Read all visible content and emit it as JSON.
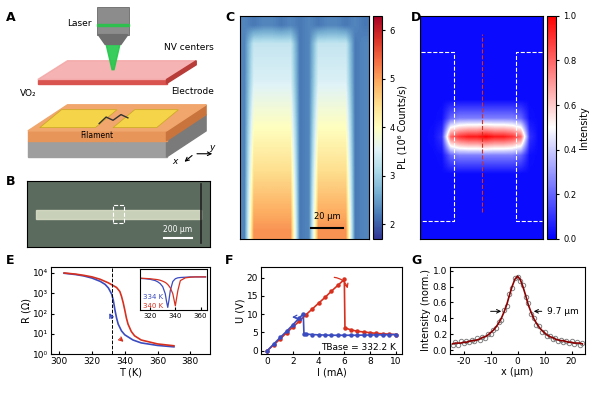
{
  "panel_labels": [
    "A",
    "B",
    "C",
    "D",
    "E",
    "F",
    "G"
  ],
  "schematic": {
    "laser": "Laser",
    "nv": "NV centers",
    "vo2": "VO₂",
    "electrode": "Electrode",
    "filament": "Filament",
    "axis_y": "y",
    "axis_x": "x"
  },
  "micrograph": {
    "scale_bar": "200 μm"
  },
  "chart_data": [
    {
      "type": "heatmap",
      "colorbar_label": "PL (10⁶ Counts/s)",
      "scale_bar": "20 μm",
      "tick_labels": false,
      "zlim": [
        1.7,
        6.3
      ],
      "zticks": [
        2,
        3,
        4,
        5,
        6
      ],
      "cells": [
        [
          2.3,
          2.2,
          2.3,
          2.3,
          2.2,
          2.3,
          2.2,
          2.3,
          2.2,
          2.3,
          2.3,
          2.2,
          2.3,
          2.2
        ],
        [
          2.3,
          3.3,
          3.3,
          3.3,
          3.3,
          3.3,
          2.2,
          2.3,
          3.3,
          3.3,
          3.3,
          3.3,
          2.2,
          2.3
        ],
        [
          2.3,
          3.4,
          3.4,
          3.4,
          3.4,
          3.4,
          2.2,
          2.3,
          3.4,
          3.4,
          3.4,
          3.4,
          2.2,
          2.3
        ],
        [
          2.3,
          3.5,
          3.5,
          3.5,
          3.5,
          3.5,
          2.2,
          2.3,
          3.5,
          3.5,
          3.5,
          3.5,
          2.2,
          2.3
        ],
        [
          2.3,
          3.7,
          3.7,
          3.7,
          3.7,
          3.7,
          2.2,
          2.3,
          3.7,
          3.7,
          3.7,
          3.7,
          2.2,
          2.3
        ],
        [
          2.3,
          3.9,
          3.9,
          3.9,
          3.9,
          3.9,
          2.2,
          2.3,
          3.9,
          3.9,
          3.9,
          3.9,
          2.2,
          2.3
        ],
        [
          2.3,
          4.1,
          4.1,
          4.1,
          4.1,
          4.1,
          2.2,
          2.3,
          4.1,
          4.1,
          4.1,
          4.1,
          2.2,
          2.3
        ],
        [
          2.3,
          4.3,
          4.3,
          4.3,
          4.3,
          4.3,
          2.2,
          2.3,
          4.3,
          4.3,
          4.3,
          4.3,
          2.2,
          2.3
        ],
        [
          2.3,
          4.5,
          4.5,
          4.5,
          4.5,
          4.5,
          2.2,
          2.3,
          4.5,
          4.5,
          4.5,
          4.5,
          2.2,
          2.3
        ],
        [
          2.3,
          4.7,
          4.7,
          4.7,
          4.7,
          4.7,
          2.2,
          2.3,
          4.7,
          4.7,
          4.7,
          4.7,
          2.2,
          2.3
        ],
        [
          2.3,
          4.9,
          4.9,
          4.9,
          4.9,
          4.9,
          2.2,
          2.3,
          4.9,
          4.9,
          4.9,
          4.9,
          2.2,
          2.3
        ],
        [
          2.3,
          5.1,
          5.1,
          5.1,
          5.1,
          5.1,
          2.2,
          2.3,
          5.1,
          5.1,
          5.1,
          5.1,
          2.2,
          2.3
        ]
      ]
    },
    {
      "type": "heatmap",
      "colorbar_label": "Intensity",
      "tick_labels": false,
      "zlim": [
        0,
        1
      ],
      "zticks": [
        {
          "value": 0,
          "label": "0.0"
        },
        {
          "value": 0.2,
          "label": "0.2"
        },
        {
          "value": 0.4,
          "label": "0.4"
        },
        {
          "value": 0.6,
          "label": "0.6"
        },
        {
          "value": 0.8,
          "label": "0.8"
        },
        {
          "value": 1,
          "label": "1.0"
        }
      ],
      "cells": [
        [
          0.02,
          0.02,
          0.02,
          0.02,
          0.02,
          0.02,
          0.02,
          0.02,
          0.02,
          0.02,
          0.02,
          0.02,
          0.02,
          0.02
        ],
        [
          0.02,
          0.02,
          0.02,
          0.02,
          0.02,
          0.02,
          0.02,
          0.02,
          0.02,
          0.02,
          0.02,
          0.02,
          0.02,
          0.02
        ],
        [
          0.02,
          0.02,
          0.02,
          0.02,
          0.02,
          0.02,
          0.02,
          0.02,
          0.02,
          0.02,
          0.02,
          0.02,
          0.02,
          0.02
        ],
        [
          0.02,
          0.02,
          0.02,
          0.02,
          0.02,
          0.02,
          0.02,
          0.02,
          0.02,
          0.02,
          0.02,
          0.02,
          0.02,
          0.02
        ],
        [
          0.02,
          0.02,
          0.02,
          0.02,
          0.02,
          0.02,
          0.02,
          0.02,
          0.02,
          0.02,
          0.02,
          0.02,
          0.02,
          0.02
        ],
        [
          0.02,
          0.02,
          0.03,
          0.2,
          0.25,
          0.25,
          0.25,
          0.25,
          0.25,
          0.25,
          0.25,
          0.2,
          0.03,
          0.02
        ],
        [
          0.02,
          0.03,
          0.1,
          0.8,
          0.9,
          0.95,
          0.95,
          1.0,
          0.95,
          0.95,
          0.9,
          0.8,
          0.1,
          0.02
        ],
        [
          0.02,
          0.02,
          0.03,
          0.2,
          0.25,
          0.25,
          0.25,
          0.25,
          0.25,
          0.25,
          0.25,
          0.2,
          0.03,
          0.02
        ],
        [
          0.02,
          0.02,
          0.02,
          0.02,
          0.02,
          0.02,
          0.02,
          0.02,
          0.02,
          0.02,
          0.02,
          0.02,
          0.02,
          0.02
        ],
        [
          0.02,
          0.02,
          0.02,
          0.02,
          0.02,
          0.02,
          0.02,
          0.02,
          0.02,
          0.02,
          0.02,
          0.02,
          0.02,
          0.02
        ],
        [
          0.02,
          0.02,
          0.02,
          0.02,
          0.02,
          0.02,
          0.02,
          0.02,
          0.02,
          0.02,
          0.02,
          0.02,
          0.02,
          0.02
        ],
        [
          0.02,
          0.02,
          0.02,
          0.02,
          0.02,
          0.02,
          0.02,
          0.02,
          0.02,
          0.02,
          0.02,
          0.02,
          0.02,
          0.02
        ]
      ]
    },
    {
      "type": "line",
      "log": "y",
      "x_label": "T (K)",
      "y_label": "R (Ω)",
      "xlim": [
        295,
        392
      ],
      "xticks": [
        300,
        320,
        340,
        360,
        380
      ],
      "ylim": [
        1,
        20000
      ],
      "yticks": [
        {
          "value": 1,
          "label": "10⁰"
        },
        {
          "value": 10,
          "label": "10¹"
        },
        {
          "value": 100,
          "label": "10²"
        },
        {
          "value": 1000,
          "label": "10³"
        },
        {
          "value": 10000,
          "label": "10⁴"
        }
      ],
      "reference_x": 332.2,
      "series": [
        {
          "color": "#3b4cc0",
          "line_style": "solid",
          "x": [
            303,
            310,
            315,
            320,
            325,
            328,
            330,
            332,
            333,
            334,
            335,
            336,
            338,
            340,
            345,
            350,
            360,
            370
          ],
          "values": [
            9500,
            8200,
            7000,
            5500,
            3800,
            2700,
            1800,
            900,
            450,
            150,
            60,
            30,
            14,
            9,
            5,
            3.6,
            2.7,
            2.3
          ]
        },
        {
          "color": "#d7301f",
          "line_style": "solid",
          "x": [
            303,
            310,
            315,
            320,
            325,
            330,
            335,
            337,
            338,
            339,
            340,
            341,
            342,
            344,
            346,
            350,
            360,
            370
          ],
          "values": [
            9800,
            8600,
            7500,
            6300,
            4800,
            3200,
            1900,
            1200,
            700,
            350,
            150,
            60,
            30,
            13,
            8,
            5,
            3.2,
            2.6
          ]
        }
      ],
      "inset": {
        "type": "line",
        "tick_labels": "x",
        "xlim": [
          312,
          365
        ],
        "xticks": [
          320,
          340,
          360
        ],
        "ylim": [
          -1.1,
          0.25
        ],
        "annotations": [
          "334 K",
          "340 K"
        ],
        "series": [
          {
            "color": "#3b4cc0",
            "line_style": "solid",
            "x": [
              312,
              316,
              320,
              324,
              326,
              328,
              330,
              332,
              333,
              334,
              335,
              336,
              338,
              340,
              342,
              344,
              348,
              352,
              356,
              360,
              364
            ],
            "values": [
              -0.05,
              -0.06,
              -0.08,
              -0.12,
              -0.16,
              -0.22,
              -0.32,
              -0.55,
              -0.8,
              -1.0,
              -0.75,
              -0.45,
              -0.15,
              -0.06,
              -0.03,
              -0.02,
              -0.01,
              0,
              0,
              0,
              0
            ]
          },
          {
            "color": "#d7301f",
            "line_style": "solid",
            "x": [
              312,
              316,
              320,
              324,
              326,
              328,
              330,
              332,
              333,
              334,
              335,
              336,
              338,
              340,
              342,
              344,
              348,
              352,
              356,
              360,
              364
            ],
            "values": [
              -0.04,
              -0.05,
              -0.06,
              -0.08,
              -0.09,
              -0.11,
              -0.14,
              -0.18,
              -0.21,
              -0.25,
              -0.3,
              -0.36,
              -0.55,
              -0.95,
              -0.45,
              -0.12,
              -0.03,
              -0.01,
              0,
              0,
              0
            ]
          }
        ]
      }
    },
    {
      "type": "line",
      "x_label": "I (mA)",
      "y_label": "U (V)",
      "xlim": [
        -0.5,
        10.5
      ],
      "xticks": [
        0,
        2,
        4,
        6,
        8,
        10
      ],
      "ylim": [
        -1,
        23
      ],
      "yticks": [
        0,
        5,
        10,
        15,
        20
      ],
      "annotations": [
        "TBase = 332.2 K"
      ],
      "series": [
        {
          "color": "#d7301f",
          "marker": "circle",
          "line_style": "solid",
          "x": [
            0,
            0.5,
            1,
            1.5,
            2,
            2.5,
            3,
            3.5,
            4,
            4.5,
            5,
            5.5,
            6,
            6.05,
            6.5,
            7,
            7.5,
            8,
            8.5,
            9,
            9.5,
            10
          ],
          "values": [
            0,
            1.6,
            3.2,
            4.9,
            6.5,
            8.1,
            9.8,
            11.4,
            13.0,
            14.6,
            16.3,
            17.9,
            19.5,
            6.2,
            5.7,
            5.3,
            5.1,
            4.9,
            4.7,
            4.6,
            4.5,
            4.4
          ]
        },
        {
          "color": "#3b4cc0",
          "marker": "circle",
          "line_style": "solid",
          "x": [
            10,
            9.5,
            9,
            8.5,
            8,
            7.5,
            7,
            6.5,
            6,
            5.5,
            5,
            4.5,
            4,
            3.5,
            3,
            2.85,
            2.8,
            2.5,
            2,
            1.5,
            1,
            0.5,
            0
          ],
          "values": [
            4.4,
            4.35,
            4.3,
            4.3,
            4.25,
            4.25,
            4.2,
            4.2,
            4.2,
            4.2,
            4.2,
            4.25,
            4.3,
            4.4,
            4.5,
            4.6,
            10.0,
            9.0,
            7.1,
            5.3,
            3.6,
            1.8,
            0
          ]
        }
      ]
    },
    {
      "type": "scatter",
      "x_label": "x (μm)",
      "y_label": "Intensity (norm.)",
      "xlim": [
        -25,
        25
      ],
      "xticks": [
        -20,
        -10,
        0,
        10,
        20
      ],
      "ylim": [
        -0.05,
        1.05
      ],
      "yticks": [
        {
          "value": 0,
          "label": "0.0"
        },
        {
          "value": 0.2,
          "label": "0.2"
        },
        {
          "value": 0.4,
          "label": "0.4"
        },
        {
          "value": 0.6,
          "label": "0.6"
        },
        {
          "value": 0.8,
          "label": "0.8"
        },
        {
          "value": 1,
          "label": "1.0"
        }
      ],
      "annotations": [
        "9.7 μm"
      ],
      "series": [
        {
          "type": "scatter",
          "color": "#808080",
          "marker": "circle",
          "x": [
            -24,
            -23,
            -22,
            -21,
            -20,
            -19,
            -18,
            -17,
            -16,
            -15,
            -14,
            -13,
            -12,
            -11,
            -10,
            -9,
            -8,
            -7,
            -6,
            -5,
            -4,
            -3,
            -2,
            -1,
            0,
            1,
            2,
            3,
            4,
            5,
            6,
            7,
            8,
            9,
            10,
            11,
            12,
            13,
            14,
            15,
            16,
            17,
            18,
            19,
            20,
            21,
            22,
            23,
            24
          ],
          "values": [
            0.06,
            0.1,
            0.07,
            0.11,
            0.09,
            0.12,
            0.1,
            0.13,
            0.11,
            0.15,
            0.13,
            0.17,
            0.16,
            0.2,
            0.21,
            0.26,
            0.28,
            0.36,
            0.38,
            0.5,
            0.55,
            0.71,
            0.78,
            0.91,
            0.92,
            0.87,
            0.82,
            0.67,
            0.59,
            0.46,
            0.41,
            0.32,
            0.3,
            0.23,
            0.23,
            0.18,
            0.18,
            0.14,
            0.15,
            0.12,
            0.13,
            0.1,
            0.12,
            0.09,
            0.11,
            0.08,
            0.1,
            0.07,
            0.09
          ]
        },
        {
          "type": "line",
          "color": "#8b0000",
          "line_style": "solid",
          "x": [
            -24,
            -23,
            -22,
            -21,
            -20,
            -19,
            -18,
            -17,
            -16,
            -15,
            -14,
            -13,
            -12,
            -11,
            -10,
            -9,
            -8,
            -7,
            -6,
            -5,
            -4,
            -3,
            -2,
            -1,
            0,
            1,
            2,
            3,
            4,
            5,
            6,
            7,
            8,
            9,
            10,
            11,
            12,
            13,
            14,
            15,
            16,
            17,
            18,
            19,
            20,
            21,
            22,
            23,
            24
          ],
          "values": [
            0.08,
            0.09,
            0.09,
            0.09,
            0.1,
            0.1,
            0.11,
            0.12,
            0.12,
            0.13,
            0.14,
            0.16,
            0.17,
            0.19,
            0.22,
            0.25,
            0.29,
            0.34,
            0.4,
            0.48,
            0.57,
            0.69,
            0.8,
            0.89,
            0.93,
            0.89,
            0.8,
            0.69,
            0.57,
            0.48,
            0.4,
            0.34,
            0.29,
            0.25,
            0.22,
            0.19,
            0.17,
            0.16,
            0.14,
            0.13,
            0.12,
            0.12,
            0.11,
            0.1,
            0.1,
            0.09,
            0.09,
            0.09,
            0.08
          ]
        }
      ]
    }
  ]
}
